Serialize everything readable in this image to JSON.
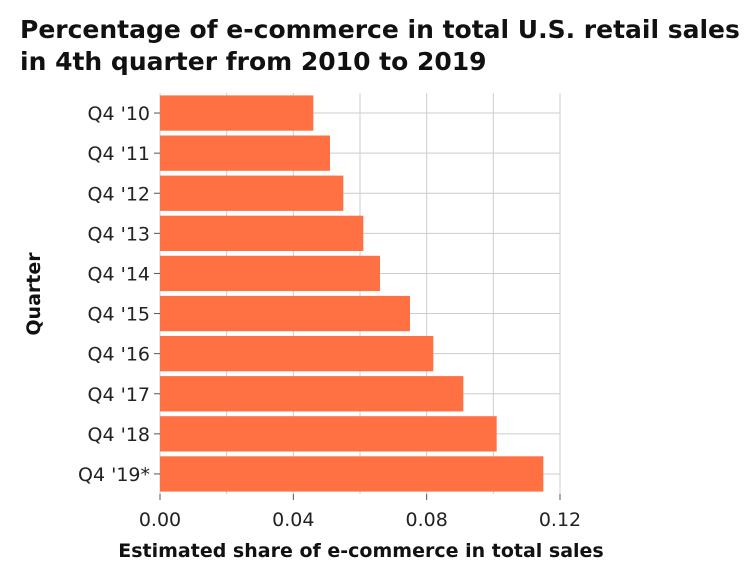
{
  "chart_data": {
    "type": "bar",
    "orientation": "horizontal",
    "title": "Percentage of e-commerce in total U.S. retail sales in 4th quarter from 2010 to 2019",
    "xlabel": "Estimated share of e-commerce in total sales",
    "ylabel": "Quarter",
    "categories": [
      "Q4 '10",
      "Q4 '11",
      "Q4 '12",
      "Q4 '13",
      "Q4 '14",
      "Q4 '15",
      "Q4 '16",
      "Q4 '17",
      "Q4 '18",
      "Q4 '19*"
    ],
    "values": [
      0.046,
      0.051,
      0.055,
      0.061,
      0.066,
      0.075,
      0.082,
      0.091,
      0.101,
      0.115
    ],
    "xlim": [
      0,
      0.12
    ],
    "xticks": [
      0,
      0.04,
      0.08,
      0.12
    ],
    "xtick_labels": [
      "0.00",
      "0.04",
      "0.08",
      "0.12"
    ],
    "grid": true,
    "bar_color": "#ff7043"
  }
}
